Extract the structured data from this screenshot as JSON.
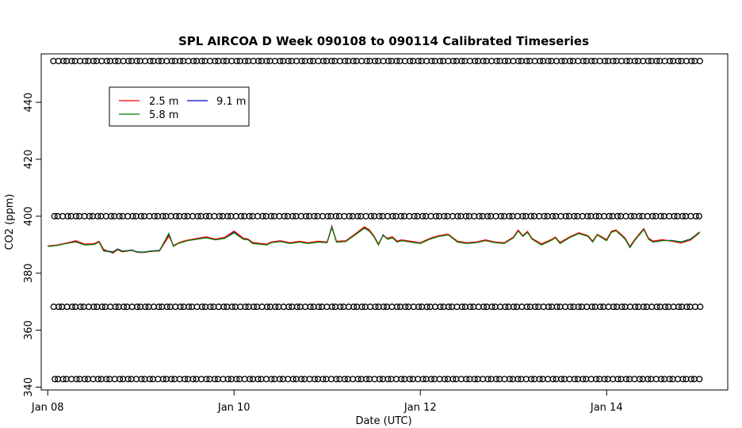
{
  "chart_data": {
    "type": "line",
    "title": "SPL AIRCOA D  Week 090108 to 090114  Calibrated Timeseries",
    "xlabel": "Date (UTC)",
    "ylabel": "CO2 (ppm)",
    "xlim": [
      -0.07,
      7.3
    ],
    "ylim": [
      339,
      457
    ],
    "x_ticks": [
      {
        "value": 0,
        "label": "Jan 08"
      },
      {
        "value": 2,
        "label": "Jan 10"
      },
      {
        "value": 4,
        "label": "Jan 12"
      },
      {
        "value": 6,
        "label": "Jan 14"
      }
    ],
    "y_ticks": [
      340,
      360,
      380,
      400,
      420,
      440
    ],
    "grid": false,
    "legend": {
      "position": "top-left",
      "entries": [
        {
          "name": "2.5 m",
          "color": "#ff0000"
        },
        {
          "name": "5.8 m",
          "color": "#008000"
        },
        {
          "name": "9.1 m",
          "color": "#0000cc"
        }
      ]
    },
    "calibration_levels": [
      454.5,
      400.0,
      368.2,
      342.8
    ],
    "calibration_x_start": 0.06,
    "calibration_x_end": 7.0,
    "calibration_x_step": 0.0465,
    "series": [
      {
        "name": "9.1 m",
        "color": "#0000cc",
        "x": [
          0.0,
          0.1,
          0.2,
          0.3,
          0.4,
          0.5,
          0.55,
          0.6,
          0.7,
          0.75,
          0.8,
          0.85,
          0.9,
          0.95,
          1.0,
          1.05,
          1.1,
          1.2,
          1.3,
          1.35,
          1.4,
          1.45,
          1.5,
          1.6,
          1.7,
          1.8,
          1.9,
          2.0,
          2.1,
          2.15,
          2.2,
          2.3,
          2.35,
          2.4,
          2.5,
          2.6,
          2.7,
          2.8,
          2.9,
          3.0,
          3.05,
          3.1,
          3.2,
          3.3,
          3.4,
          3.45,
          3.5,
          3.55,
          3.6,
          3.65,
          3.7,
          3.75,
          3.8,
          3.9,
          4.0,
          4.1,
          4.2,
          4.3,
          4.4,
          4.5,
          4.6,
          4.7,
          4.8,
          4.9,
          5.0,
          5.05,
          5.1,
          5.15,
          5.2,
          5.3,
          5.4,
          5.45,
          5.5,
          5.6,
          5.7,
          5.8,
          5.85,
          5.9,
          6.0,
          6.05,
          6.1,
          6.15,
          6.2,
          6.25,
          6.3,
          6.35,
          6.4,
          6.45,
          6.5,
          6.6,
          6.7,
          6.8,
          6.9,
          7.0
        ],
        "values": [
          389.5,
          389.8,
          390.5,
          391.2,
          390.0,
          390.2,
          391.0,
          388.0,
          387.5,
          388.5,
          387.8,
          387.9,
          388.2,
          387.6,
          387.4,
          387.5,
          387.8,
          388.0,
          393.5,
          389.5,
          390.5,
          391.0,
          391.5,
          392.0,
          392.5,
          391.8,
          392.3,
          394.5,
          392.0,
          391.8,
          390.5,
          390.2,
          390.0,
          390.8,
          391.2,
          390.5,
          391.0,
          390.5,
          391.0,
          390.8,
          396.5,
          391.0,
          391.2,
          393.5,
          396.0,
          395.0,
          393.0,
          390.0,
          393.5,
          392.0,
          392.5,
          391.0,
          391.5,
          391.0,
          390.5,
          392.0,
          393.0,
          393.5,
          391.0,
          390.5,
          390.8,
          391.5,
          390.8,
          390.5,
          392.5,
          395.0,
          393.0,
          394.5,
          392.0,
          390.0,
          391.5,
          392.5,
          390.5,
          392.5,
          394.0,
          393.0,
          391.0,
          393.5,
          391.5,
          394.5,
          395.0,
          393.5,
          392.0,
          389.0,
          391.5,
          393.5,
          395.5,
          392.0,
          391.0,
          391.5,
          391.5,
          391.0,
          392.0,
          394.5
        ]
      },
      {
        "name": "2.5 m",
        "color": "#ff0000",
        "x": [
          0.0,
          0.1,
          0.2,
          0.3,
          0.4,
          0.5,
          0.55,
          0.6,
          0.7,
          0.75,
          0.8,
          0.85,
          0.9,
          0.95,
          1.0,
          1.05,
          1.1,
          1.2,
          1.3,
          1.35,
          1.4,
          1.45,
          1.5,
          1.6,
          1.7,
          1.8,
          1.9,
          2.0,
          2.1,
          2.15,
          2.2,
          2.3,
          2.35,
          2.4,
          2.5,
          2.6,
          2.7,
          2.8,
          2.9,
          3.0,
          3.05,
          3.1,
          3.2,
          3.3,
          3.4,
          3.45,
          3.5,
          3.55,
          3.6,
          3.65,
          3.7,
          3.75,
          3.8,
          3.9,
          4.0,
          4.1,
          4.2,
          4.3,
          4.4,
          4.5,
          4.6,
          4.7,
          4.8,
          4.9,
          5.0,
          5.05,
          5.1,
          5.15,
          5.2,
          5.3,
          5.4,
          5.45,
          5.5,
          5.6,
          5.7,
          5.8,
          5.85,
          5.9,
          6.0,
          6.05,
          6.1,
          6.15,
          6.2,
          6.25,
          6.3,
          6.35,
          6.4,
          6.45,
          6.5,
          6.6,
          6.7,
          6.8,
          6.9,
          7.0
        ],
        "values": [
          389.6,
          389.9,
          390.6,
          391.4,
          390.2,
          390.4,
          391.2,
          388.4,
          387.0,
          388.2,
          387.5,
          387.7,
          388.0,
          387.4,
          387.2,
          387.3,
          387.6,
          387.8,
          393.0,
          389.7,
          390.6,
          391.2,
          391.6,
          392.2,
          392.8,
          392.0,
          392.6,
          394.8,
          392.3,
          392.0,
          390.8,
          390.4,
          390.2,
          391.0,
          391.4,
          390.7,
          391.2,
          390.7,
          391.2,
          391.0,
          396.2,
          391.2,
          391.4,
          393.8,
          396.3,
          395.3,
          393.2,
          390.3,
          393.2,
          392.3,
          392.8,
          391.3,
          391.7,
          391.2,
          390.7,
          392.2,
          393.2,
          393.7,
          391.2,
          390.7,
          391.0,
          391.7,
          391.0,
          390.7,
          392.7,
          395.2,
          393.2,
          394.7,
          392.2,
          390.3,
          391.7,
          392.7,
          390.8,
          392.7,
          394.2,
          393.2,
          391.3,
          393.7,
          391.8,
          394.7,
          395.2,
          393.8,
          392.3,
          389.4,
          391.8,
          393.8,
          395.7,
          392.3,
          391.3,
          391.8,
          391.2,
          390.6,
          391.6,
          394.2
        ]
      },
      {
        "name": "5.8 m",
        "color": "#008000",
        "x": [
          0.0,
          0.1,
          0.2,
          0.3,
          0.4,
          0.5,
          0.55,
          0.6,
          0.7,
          0.75,
          0.8,
          0.85,
          0.9,
          0.95,
          1.0,
          1.05,
          1.1,
          1.2,
          1.3,
          1.35,
          1.4,
          1.45,
          1.5,
          1.6,
          1.7,
          1.8,
          1.9,
          2.0,
          2.1,
          2.15,
          2.2,
          2.3,
          2.35,
          2.4,
          2.5,
          2.6,
          2.7,
          2.8,
          2.9,
          3.0,
          3.05,
          3.1,
          3.2,
          3.3,
          3.4,
          3.45,
          3.5,
          3.55,
          3.6,
          3.65,
          3.7,
          3.75,
          3.8,
          3.9,
          4.0,
          4.1,
          4.2,
          4.3,
          4.4,
          4.5,
          4.6,
          4.7,
          4.8,
          4.9,
          5.0,
          5.05,
          5.1,
          5.15,
          5.2,
          5.3,
          5.4,
          5.45,
          5.5,
          5.6,
          5.7,
          5.8,
          5.85,
          5.9,
          6.0,
          6.05,
          6.1,
          6.15,
          6.2,
          6.25,
          6.3,
          6.35,
          6.4,
          6.45,
          6.5,
          6.6,
          6.7,
          6.8,
          6.9,
          7.0
        ],
        "values": [
          389.4,
          389.7,
          390.4,
          391.0,
          389.9,
          390.1,
          390.9,
          387.8,
          387.3,
          388.4,
          387.7,
          387.8,
          388.1,
          387.5,
          387.3,
          387.4,
          387.7,
          387.9,
          394.0,
          389.4,
          390.4,
          390.9,
          391.4,
          391.9,
          392.4,
          391.7,
          392.2,
          394.2,
          391.9,
          391.7,
          390.4,
          390.1,
          389.9,
          390.7,
          391.1,
          390.4,
          390.9,
          390.4,
          390.9,
          390.7,
          396.0,
          390.9,
          391.1,
          393.4,
          395.8,
          394.8,
          392.9,
          389.9,
          393.3,
          391.9,
          392.4,
          390.9,
          391.4,
          390.9,
          390.4,
          391.9,
          392.9,
          393.4,
          390.9,
          390.4,
          390.7,
          391.4,
          390.7,
          390.4,
          392.4,
          394.8,
          392.9,
          394.3,
          391.9,
          389.9,
          391.4,
          392.4,
          390.4,
          392.4,
          393.9,
          392.9,
          390.9,
          393.4,
          391.4,
          394.3,
          394.9,
          393.4,
          391.9,
          389.0,
          391.4,
          393.4,
          395.3,
          391.9,
          390.9,
          391.4,
          391.4,
          390.9,
          391.9,
          394.4
        ]
      }
    ]
  }
}
